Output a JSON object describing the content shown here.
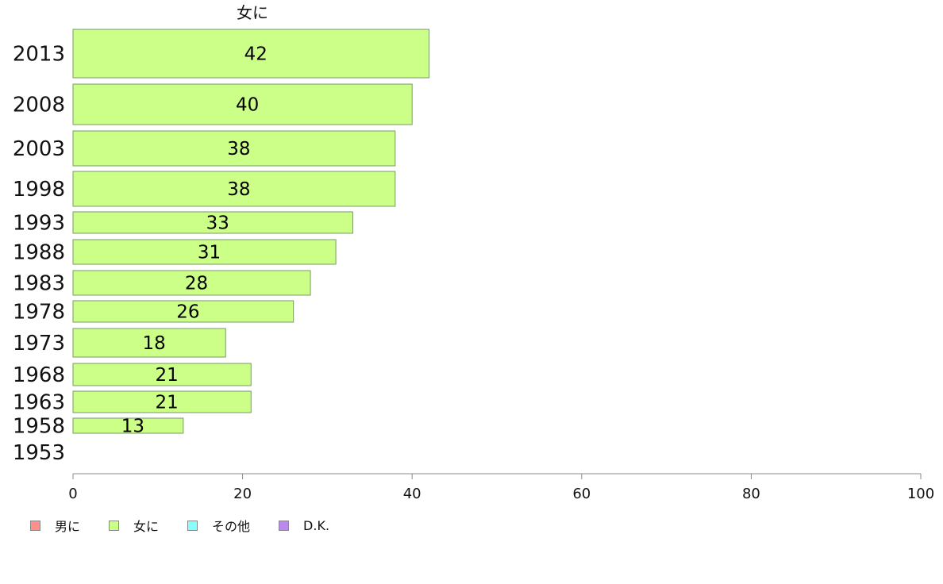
{
  "chart_data": {
    "type": "bar",
    "orientation": "horizontal",
    "title": "女に",
    "categories": [
      "2013",
      "2008",
      "2003",
      "1998",
      "1993",
      "1988",
      "1983",
      "1978",
      "1973",
      "1968",
      "1963",
      "1958",
      "1953"
    ],
    "series": [
      {
        "name": "女に",
        "values": [
          42,
          40,
          38,
          38,
          33,
          31,
          28,
          26,
          18,
          21,
          21,
          13,
          null
        ],
        "value_labels": [
          "42",
          "40",
          "38",
          "38",
          "33",
          "31",
          "28",
          "26",
          "18",
          "21",
          "21",
          "13",
          ""
        ],
        "color": "#ccff88"
      }
    ],
    "xlim": [
      0,
      100
    ],
    "xticks": [
      "0",
      "20",
      "40",
      "60",
      "80",
      "100"
    ],
    "grid": false,
    "legend_position": "bottom-left",
    "legend": [
      {
        "label": "男に",
        "color": "#ff8f8a"
      },
      {
        "label": "女に",
        "color": "#ccff88"
      },
      {
        "label": "その他",
        "color": "#88ffff"
      },
      {
        "label": "D.K.",
        "color": "#bb88ee"
      }
    ]
  }
}
